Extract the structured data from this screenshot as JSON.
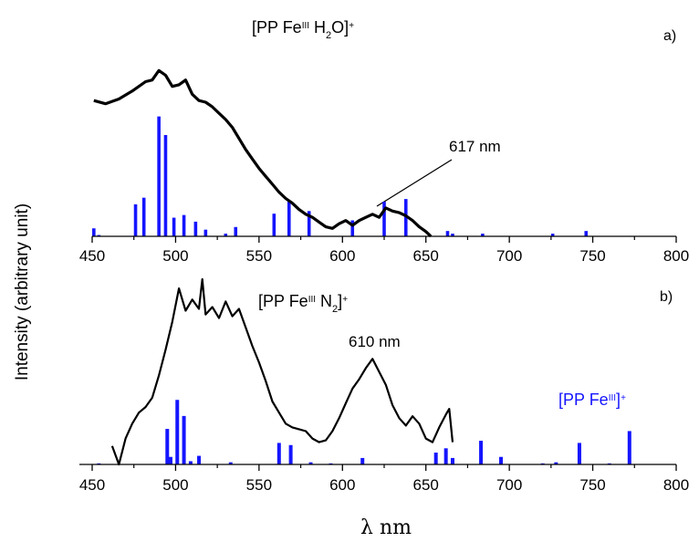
{
  "ylabel": "Intensity (arbitrary unit)",
  "xlabel": "λ nm",
  "panels": [
    {
      "id": "a",
      "title": {
        "pre": "[PP Fe",
        "sup1": "III",
        "mid": " H",
        "sub": "2",
        "post": "O]",
        "sup2": "+"
      },
      "letter": "a)",
      "annotation": "617 nm"
    },
    {
      "id": "b",
      "title": {
        "pre": "[PP Fe",
        "sup1": "III",
        "mid": " N",
        "sub": "2",
        "post": "]",
        "sup2": "+"
      },
      "letter": "b)",
      "annotation": "610 nm",
      "legend": {
        "pre": "[PP Fe",
        "sup1": "III",
        "post": "]",
        "sup2": "+"
      }
    }
  ],
  "colors": {
    "experiment": "#000000",
    "theory": "#1515ff"
  },
  "chart_data": [
    {
      "type": "line",
      "panel": "a",
      "xlim": [
        450,
        800
      ],
      "xticks": [
        450,
        500,
        550,
        600,
        650,
        700,
        750,
        800
      ],
      "series": [
        {
          "kind": "experimental spectrum",
          "x": [
            451,
            458,
            466,
            474,
            482,
            486,
            490,
            494,
            498,
            502,
            506,
            510,
            514,
            518,
            522,
            526,
            530,
            534,
            538,
            542,
            546,
            550,
            554,
            558,
            562,
            566,
            570,
            574,
            578,
            582,
            586,
            590,
            594,
            598,
            602,
            606,
            610,
            614,
            618,
            622,
            626,
            630,
            634,
            638,
            642,
            646,
            650,
            653
          ],
          "y": [
            0.86,
            0.84,
            0.87,
            0.92,
            0.98,
            0.99,
            1.05,
            1.02,
            0.95,
            0.96,
            0.99,
            0.9,
            0.86,
            0.85,
            0.82,
            0.78,
            0.74,
            0.69,
            0.62,
            0.55,
            0.49,
            0.43,
            0.38,
            0.33,
            0.28,
            0.24,
            0.21,
            0.17,
            0.14,
            0.12,
            0.09,
            0.06,
            0.05,
            0.08,
            0.1,
            0.07,
            0.1,
            0.12,
            0.14,
            0.12,
            0.18,
            0.16,
            0.15,
            0.13,
            0.1,
            0.06,
            0.03,
            0.0
          ]
        },
        {
          "kind": "calculated transitions",
          "x": [
            451,
            454,
            476,
            481,
            490,
            494,
            499,
            505,
            512,
            518,
            530,
            536,
            559,
            568,
            580,
            606,
            625,
            638,
            663,
            666,
            684,
            726,
            746
          ],
          "y": [
            0.06,
            0.01,
            0.24,
            0.29,
            0.9,
            0.76,
            0.14,
            0.16,
            0.11,
            0.05,
            0.02,
            0.07,
            0.17,
            0.26,
            0.19,
            0.12,
            0.26,
            0.28,
            0.04,
            0.02,
            0.02,
            0.02,
            0.04
          ]
        }
      ]
    },
    {
      "type": "line",
      "panel": "b",
      "xlim": [
        450,
        800
      ],
      "xticks": [
        450,
        500,
        550,
        600,
        650,
        700,
        750,
        800
      ],
      "series": [
        {
          "kind": "experimental spectrum",
          "x": [
            462,
            466,
            470,
            474,
            478,
            482,
            486,
            490,
            494,
            498,
            502,
            506,
            510,
            514,
            516,
            518,
            522,
            526,
            530,
            534,
            538,
            542,
            546,
            550,
            554,
            558,
            562,
            566,
            570,
            574,
            578,
            582,
            586,
            590,
            594,
            598,
            602,
            606,
            610,
            614,
            618,
            622,
            626,
            630,
            634,
            638,
            642,
            646,
            650,
            654,
            658,
            662,
            664,
            666
          ],
          "y": [
            0.1,
            0.0,
            0.14,
            0.22,
            0.28,
            0.31,
            0.36,
            0.48,
            0.62,
            0.77,
            0.95,
            0.83,
            0.89,
            0.84,
            1.0,
            0.81,
            0.85,
            0.79,
            0.88,
            0.8,
            0.84,
            0.74,
            0.64,
            0.55,
            0.45,
            0.34,
            0.28,
            0.22,
            0.2,
            0.19,
            0.18,
            0.14,
            0.12,
            0.13,
            0.18,
            0.25,
            0.33,
            0.41,
            0.46,
            0.52,
            0.57,
            0.5,
            0.43,
            0.32,
            0.25,
            0.21,
            0.26,
            0.22,
            0.14,
            0.12,
            0.2,
            0.27,
            0.3,
            0.12
          ]
        },
        {
          "kind": "calculated transitions",
          "x": [
            454,
            495,
            497,
            501,
            505,
            509,
            514,
            533,
            562,
            569,
            581,
            593,
            612,
            656,
            662,
            666,
            683,
            695,
            720,
            728,
            742,
            760,
            772
          ],
          "y": [
            0.01,
            0.33,
            0.07,
            0.6,
            0.45,
            0.03,
            0.08,
            0.02,
            0.2,
            0.18,
            0.02,
            0.01,
            0.06,
            0.11,
            0.15,
            0.06,
            0.22,
            0.07,
            0.01,
            0.02,
            0.2,
            0.01,
            0.31
          ]
        }
      ]
    }
  ]
}
